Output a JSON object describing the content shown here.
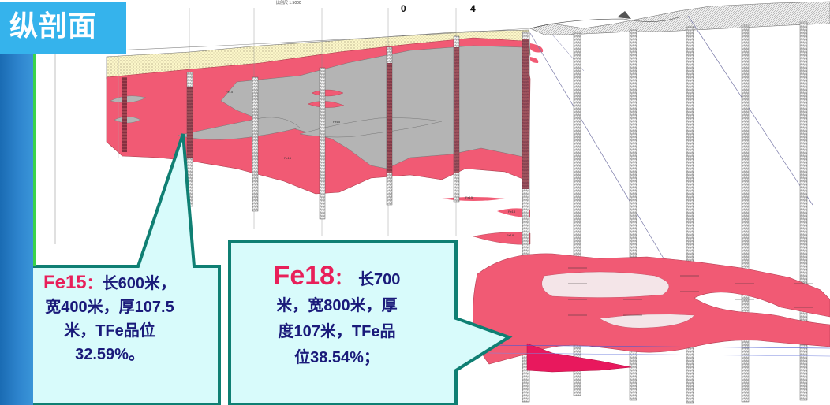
{
  "title": "纵剖面",
  "scale": {
    "caption": "比例尺 1:5000",
    "start": "0",
    "end": "4"
  },
  "callouts": [
    {
      "id": "fe15",
      "name": "Fe15",
      "colon": "：",
      "line1_rest": "长600米，",
      "line2": "宽400米，厚107.5",
      "line3": "米，TFe品位",
      "line4": "32.59%。"
    },
    {
      "id": "fe18",
      "name": "Fe18",
      "colon": "：",
      "line1_rest": "长700",
      "line2": "米，宽800米，厚",
      "line3": "度107米，TFe品",
      "line4": "位38.54%；"
    }
  ],
  "ore_labels": [
    "Fe15",
    "Fe15",
    "Fe15",
    "Fe15",
    "Fe18",
    "Fe18"
  ],
  "colors": {
    "title_bg": "#35b3ec",
    "left_bar": "#1f78c2",
    "left_bar_accent": "#3bd34a",
    "ore_body": "#f15a74",
    "ore_body_dark": "#e8185d",
    "waste_rock": "#b4b4b4",
    "surface_soil": "#fbf6c8",
    "callout_fill": "#d8fbfb",
    "callout_stroke": "#0f7f73",
    "callout_text": "#1a1a7a",
    "callout_highlight": "#e8205a"
  }
}
